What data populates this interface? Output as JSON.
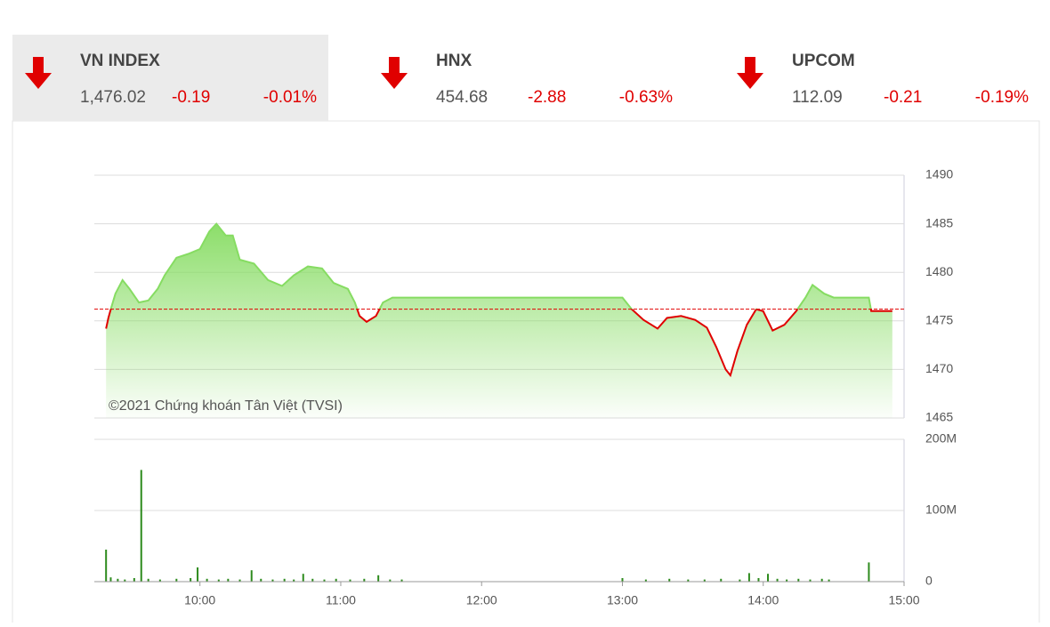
{
  "indices": [
    {
      "name": "VN INDEX",
      "value": "1,476.02",
      "change": "-0.19",
      "percent": "-0.01%"
    },
    {
      "name": "HNX",
      "value": "454.68",
      "change": "-2.88",
      "percent": "-0.63%"
    },
    {
      "name": "UPCOM",
      "value": "112.09",
      "change": "-0.21",
      "percent": "-0.19%"
    }
  ],
  "chart_data": [
    {
      "type": "line",
      "area": true,
      "annotation": "©2021 Chứng khoán Tân Việt (TVSI)",
      "color": "#86dc62",
      "below_color": "#e00000",
      "reference_value": 1476.21,
      "reference_color": "#e00000",
      "x": [
        560,
        561,
        562,
        564,
        567,
        570,
        574,
        578,
        582,
        585,
        590,
        595,
        600,
        604,
        607,
        611,
        614,
        617,
        623,
        629,
        635,
        640,
        646,
        652,
        657,
        663,
        666,
        668,
        671,
        675,
        678,
        682,
        690,
        780,
        784,
        789,
        795,
        799,
        805,
        811,
        816,
        820,
        824,
        826,
        829,
        833,
        837,
        840,
        844,
        849,
        854,
        858,
        861,
        866,
        870,
        885,
        886,
        895
      ],
      "values": [
        1474.2,
        1475.3,
        1476.2,
        1477.8,
        1479.2,
        1478.3,
        1476.9,
        1477.1,
        1478.3,
        1479.7,
        1481.5,
        1481.9,
        1482.4,
        1484.2,
        1485.0,
        1483.8,
        1483.8,
        1481.3,
        1480.9,
        1479.2,
        1478.6,
        1479.7,
        1480.6,
        1480.4,
        1478.9,
        1478.3,
        1476.9,
        1475.5,
        1474.9,
        1475.5,
        1476.9,
        1477.4,
        1477.4,
        1477.4,
        1476.2,
        1475.1,
        1474.2,
        1475.3,
        1475.5,
        1475.1,
        1474.3,
        1472.3,
        1470.0,
        1469.4,
        1471.9,
        1474.6,
        1476.2,
        1476.0,
        1474.0,
        1474.6,
        1476.0,
        1477.4,
        1478.7,
        1477.8,
        1477.4,
        1477.4,
        1476.02,
        1476.02
      ],
      "xlim": [
        555,
        900
      ],
      "ylim": [
        1465,
        1490
      ],
      "yticks": [
        1465,
        1470,
        1475,
        1480,
        1485,
        1490
      ],
      "grid": true
    },
    {
      "type": "bar",
      "color": "#2e8b1e",
      "x": [
        560,
        562,
        565,
        568,
        572,
        575,
        578,
        583,
        590,
        596,
        599,
        603,
        608,
        612,
        617,
        622,
        626,
        631,
        636,
        640,
        644,
        648,
        653,
        658,
        664,
        670,
        676,
        681,
        686,
        780,
        790,
        800,
        808,
        815,
        822,
        830,
        834,
        838,
        842,
        846,
        850,
        855,
        860,
        865,
        868,
        885
      ],
      "values": [
        45,
        6,
        4,
        3,
        5,
        157,
        4,
        3,
        4,
        5,
        20,
        4,
        3,
        4,
        3,
        16,
        4,
        3,
        4,
        3,
        11,
        4,
        3,
        4,
        3,
        4,
        9,
        3,
        3,
        5,
        3,
        4,
        3,
        3,
        4,
        3,
        12,
        5,
        11,
        4,
        3,
        4,
        3,
        4,
        3,
        27
      ],
      "xlim": [
        555,
        900
      ],
      "xticks": [
        {
          "value": 600,
          "label": "10:00"
        },
        {
          "value": 660,
          "label": "11:00"
        },
        {
          "value": 720,
          "label": "12:00"
        },
        {
          "value": 780,
          "label": "13:00"
        },
        {
          "value": 840,
          "label": "14:00"
        },
        {
          "value": 900,
          "label": "15:00"
        }
      ],
      "ylim": [
        0,
        200
      ],
      "yticks": [
        0,
        {
          "value": 100,
          "label": "100M"
        },
        {
          "value": 200,
          "label": "200M"
        }
      ],
      "grid": true
    }
  ]
}
